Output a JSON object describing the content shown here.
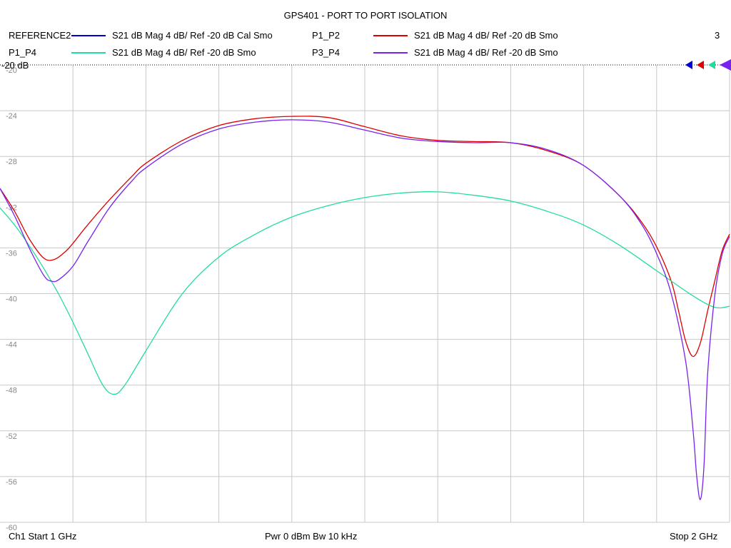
{
  "chart_data": {
    "type": "line",
    "title": "GPS401 - PORT TO PORT ISOLATION",
    "xlim_ghz": [
      1,
      2
    ],
    "ylim": [
      -60,
      -20
    ],
    "yticks": [
      -20,
      -24,
      -28,
      -32,
      -36,
      -40,
      -44,
      -48,
      -52,
      -56,
      -60
    ],
    "yticklabels": [
      "-20",
      "-24",
      "-28",
      "-32",
      "-36",
      "-40",
      "-44",
      "-48",
      "-52",
      "-56",
      "-60"
    ],
    "ref_label": "-20 dB",
    "ref_value": -20,
    "grid": true,
    "marker_count": "3",
    "series": [
      {
        "name": "REFERENCE2",
        "desc": "S21  dB Mag  4 dB/ Ref -20 dB  Cal Smo",
        "color": "#0000cc",
        "x": [],
        "y": []
      },
      {
        "name": "P1_P2",
        "desc": "S21  dB Mag  4 dB/ Ref -20 dB  Smo",
        "color": "#dd0000",
        "x": [
          1.0,
          1.02,
          1.04,
          1.06,
          1.075,
          1.09,
          1.1,
          1.12,
          1.15,
          1.18,
          1.2,
          1.25,
          1.3,
          1.35,
          1.4,
          1.45,
          1.5,
          1.55,
          1.6,
          1.65,
          1.7,
          1.75,
          1.8,
          1.85,
          1.88,
          1.9,
          1.92,
          1.93,
          1.94,
          1.95,
          1.96,
          1.97,
          1.98,
          1.99,
          2.0
        ],
        "y": [
          -30.8,
          -32.8,
          -35.2,
          -36.9,
          -37.0,
          -36.3,
          -35.6,
          -34.0,
          -31.8,
          -29.8,
          -28.6,
          -26.6,
          -25.3,
          -24.7,
          -24.5,
          -24.6,
          -25.4,
          -26.2,
          -26.6,
          -26.7,
          -26.8,
          -27.5,
          -28.8,
          -31.5,
          -33.8,
          -35.9,
          -38.9,
          -41.5,
          -44.2,
          -45.5,
          -44.3,
          -41.5,
          -38.8,
          -36.2,
          -34.8
        ]
      },
      {
        "name": "P1_P4",
        "desc": "S21  dB Mag  4 dB/ Ref -20 dB  Smo",
        "color": "#22dd99",
        "x": [
          1.0,
          1.02,
          1.04,
          1.06,
          1.08,
          1.1,
          1.12,
          1.14,
          1.155,
          1.17,
          1.2,
          1.25,
          1.3,
          1.35,
          1.4,
          1.45,
          1.5,
          1.55,
          1.6,
          1.65,
          1.7,
          1.75,
          1.8,
          1.85,
          1.9,
          1.95,
          1.98,
          2.0
        ],
        "y": [
          -32.5,
          -34.0,
          -35.8,
          -37.8,
          -40.0,
          -42.5,
          -45.2,
          -47.9,
          -48.8,
          -48.1,
          -45.0,
          -40.0,
          -36.8,
          -34.8,
          -33.3,
          -32.3,
          -31.6,
          -31.2,
          -31.1,
          -31.4,
          -31.9,
          -32.8,
          -34.0,
          -35.8,
          -38.0,
          -40.2,
          -41.2,
          -41.1
        ]
      },
      {
        "name": "P3_P4",
        "desc": "S21  dB Mag  4 dB/ Ref -20 dB  Smo",
        "color": "#7722ee",
        "x": [
          1.0,
          1.02,
          1.04,
          1.06,
          1.07,
          1.08,
          1.1,
          1.12,
          1.15,
          1.18,
          1.2,
          1.25,
          1.3,
          1.35,
          1.4,
          1.45,
          1.5,
          1.55,
          1.6,
          1.65,
          1.7,
          1.75,
          1.8,
          1.85,
          1.88,
          1.9,
          1.92,
          1.94,
          1.95,
          1.955,
          1.96,
          1.965,
          1.97,
          1.98,
          1.99,
          2.0
        ],
        "y": [
          -30.8,
          -33.2,
          -36.0,
          -38.4,
          -38.9,
          -38.8,
          -37.6,
          -35.5,
          -32.5,
          -30.2,
          -29.0,
          -26.9,
          -25.6,
          -25.0,
          -24.8,
          -25.0,
          -25.7,
          -26.4,
          -26.7,
          -26.8,
          -26.8,
          -27.4,
          -28.8,
          -31.5,
          -34.0,
          -36.5,
          -40.0,
          -46.0,
          -52.0,
          -56.0,
          -58.0,
          -55.0,
          -47.0,
          -40.0,
          -36.5,
          -35.0
        ]
      }
    ]
  },
  "footer": {
    "left": "Ch1  Start  1 GHz",
    "center": "Pwr  0 dBm  Bw  10 kHz",
    "right": "Stop  2 GHz"
  }
}
